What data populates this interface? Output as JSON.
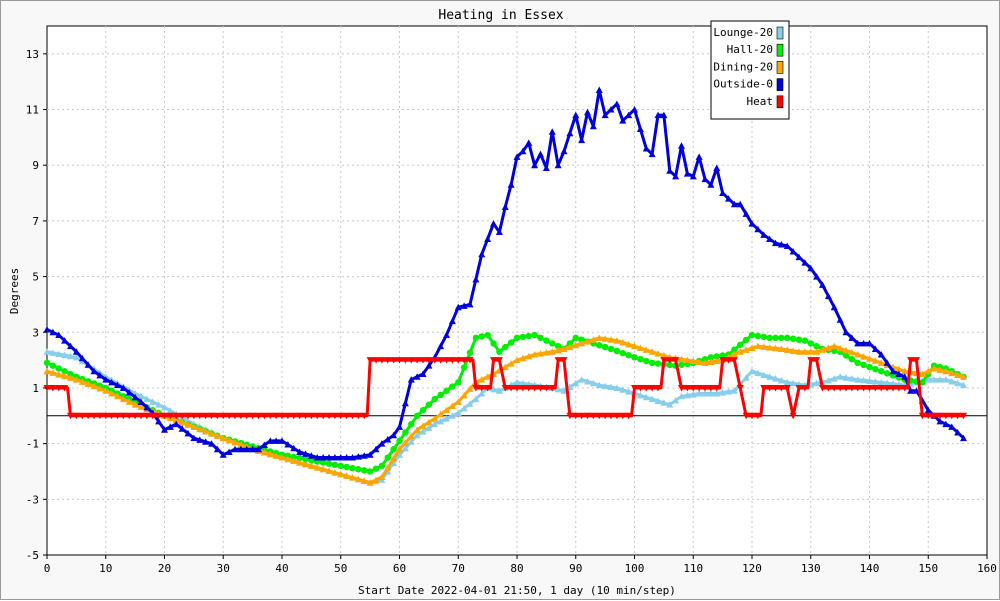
{
  "chart_data": {
    "type": "line",
    "title": "Heating in Essex",
    "xlabel": "Start Date 2022-04-01 21:50, 1 day (10 min/step)",
    "ylabel": "Degrees",
    "xlim": [
      0,
      160
    ],
    "ylim": [
      -5,
      14
    ],
    "x_ticks": [
      0,
      10,
      20,
      30,
      40,
      50,
      60,
      70,
      80,
      90,
      100,
      110,
      120,
      130,
      140,
      150,
      160
    ],
    "y_ticks": [
      -5,
      -3,
      -1,
      1,
      3,
      5,
      7,
      9,
      11,
      13
    ],
    "grid": true,
    "legend_position": "top-right",
    "series": [
      {
        "name": "Lounge-20",
        "color": "#87ceeb",
        "marker": "triangle",
        "points": [
          [
            0,
            2.3
          ],
          [
            5,
            2.1
          ],
          [
            10,
            1.4
          ],
          [
            15,
            0.8
          ],
          [
            20,
            0.3
          ],
          [
            25,
            -0.3
          ],
          [
            30,
            -0.8
          ],
          [
            35,
            -1.2
          ],
          [
            40,
            -1.5
          ],
          [
            45,
            -1.8
          ],
          [
            50,
            -2.1
          ],
          [
            55,
            -2.4
          ],
          [
            57,
            -2.3
          ],
          [
            60,
            -1.4
          ],
          [
            63,
            -0.7
          ],
          [
            66,
            -0.3
          ],
          [
            70,
            0.1
          ],
          [
            73,
            0.6
          ],
          [
            75,
            1.0
          ],
          [
            77,
            0.9
          ],
          [
            80,
            1.2
          ],
          [
            83,
            1.1
          ],
          [
            86,
            1.0
          ],
          [
            88,
            0.9
          ],
          [
            91,
            1.3
          ],
          [
            94,
            1.1
          ],
          [
            97,
            1.0
          ],
          [
            100,
            0.8
          ],
          [
            103,
            0.6
          ],
          [
            106,
            0.4
          ],
          [
            108,
            0.7
          ],
          [
            111,
            0.8
          ],
          [
            114,
            0.8
          ],
          [
            117,
            0.9
          ],
          [
            120,
            1.6
          ],
          [
            123,
            1.4
          ],
          [
            126,
            1.2
          ],
          [
            129,
            1.1
          ],
          [
            132,
            1.2
          ],
          [
            135,
            1.4
          ],
          [
            138,
            1.3
          ],
          [
            142,
            1.2
          ],
          [
            146,
            1.1
          ],
          [
            150,
            1.3
          ],
          [
            153,
            1.3
          ],
          [
            156,
            1.1
          ]
        ]
      },
      {
        "name": "Hall-20",
        "color": "#00ee00",
        "marker": "circle",
        "points": [
          [
            0,
            1.9
          ],
          [
            5,
            1.4
          ],
          [
            10,
            1.0
          ],
          [
            15,
            0.5
          ],
          [
            20,
            0.0
          ],
          [
            25,
            -0.4
          ],
          [
            30,
            -0.8
          ],
          [
            35,
            -1.1
          ],
          [
            40,
            -1.4
          ],
          [
            45,
            -1.6
          ],
          [
            50,
            -1.8
          ],
          [
            55,
            -2.0
          ],
          [
            57,
            -1.8
          ],
          [
            60,
            -0.9
          ],
          [
            63,
            0.0
          ],
          [
            66,
            0.6
          ],
          [
            70,
            1.2
          ],
          [
            73,
            2.8
          ],
          [
            75,
            2.9
          ],
          [
            77,
            2.3
          ],
          [
            80,
            2.8
          ],
          [
            83,
            2.9
          ],
          [
            86,
            2.6
          ],
          [
            88,
            2.4
          ],
          [
            90,
            2.8
          ],
          [
            93,
            2.6
          ],
          [
            96,
            2.4
          ],
          [
            100,
            2.1
          ],
          [
            103,
            1.9
          ],
          [
            107,
            1.8
          ],
          [
            110,
            1.9
          ],
          [
            113,
            2.1
          ],
          [
            116,
            2.2
          ],
          [
            120,
            2.9
          ],
          [
            123,
            2.8
          ],
          [
            126,
            2.8
          ],
          [
            129,
            2.7
          ],
          [
            132,
            2.4
          ],
          [
            135,
            2.3
          ],
          [
            138,
            1.9
          ],
          [
            142,
            1.6
          ],
          [
            146,
            1.3
          ],
          [
            149,
            1.2
          ],
          [
            151,
            1.8
          ],
          [
            153,
            1.7
          ],
          [
            156,
            1.4
          ]
        ]
      },
      {
        "name": "Dining-20",
        "color": "#ffa500",
        "marker": "triangle",
        "points": [
          [
            0,
            1.6
          ],
          [
            5,
            1.3
          ],
          [
            10,
            0.9
          ],
          [
            15,
            0.4
          ],
          [
            20,
            0.0
          ],
          [
            25,
            -0.4
          ],
          [
            30,
            -0.8
          ],
          [
            35,
            -1.2
          ],
          [
            40,
            -1.5
          ],
          [
            45,
            -1.8
          ],
          [
            50,
            -2.1
          ],
          [
            55,
            -2.4
          ],
          [
            57,
            -2.2
          ],
          [
            60,
            -1.2
          ],
          [
            63,
            -0.5
          ],
          [
            66,
            -0.1
          ],
          [
            70,
            0.5
          ],
          [
            73,
            1.2
          ],
          [
            76,
            1.5
          ],
          [
            80,
            2.0
          ],
          [
            83,
            2.2
          ],
          [
            86,
            2.3
          ],
          [
            88,
            2.4
          ],
          [
            91,
            2.6
          ],
          [
            94,
            2.8
          ],
          [
            97,
            2.7
          ],
          [
            100,
            2.5
          ],
          [
            103,
            2.3
          ],
          [
            106,
            2.1
          ],
          [
            109,
            2.0
          ],
          [
            112,
            1.9
          ],
          [
            115,
            2.0
          ],
          [
            118,
            2.3
          ],
          [
            121,
            2.5
          ],
          [
            125,
            2.4
          ],
          [
            128,
            2.3
          ],
          [
            131,
            2.3
          ],
          [
            134,
            2.5
          ],
          [
            138,
            2.2
          ],
          [
            142,
            1.9
          ],
          [
            146,
            1.6
          ],
          [
            149,
            1.5
          ],
          [
            151,
            1.7
          ],
          [
            153,
            1.6
          ],
          [
            156,
            1.4
          ]
        ]
      },
      {
        "name": "Outside-0",
        "color": "#0000dd",
        "marker": "triangle",
        "points": [
          [
            0,
            3.1
          ],
          [
            2,
            2.9
          ],
          [
            5,
            2.3
          ],
          [
            8,
            1.6
          ],
          [
            10,
            1.3
          ],
          [
            13,
            1.0
          ],
          [
            16,
            0.5
          ],
          [
            18,
            0.1
          ],
          [
            20,
            -0.5
          ],
          [
            22,
            -0.3
          ],
          [
            25,
            -0.8
          ],
          [
            28,
            -1.0
          ],
          [
            30,
            -1.4
          ],
          [
            32,
            -1.2
          ],
          [
            36,
            -1.2
          ],
          [
            38,
            -0.9
          ],
          [
            40,
            -0.9
          ],
          [
            43,
            -1.3
          ],
          [
            46,
            -1.5
          ],
          [
            50,
            -1.5
          ],
          [
            52,
            -1.5
          ],
          [
            55,
            -1.4
          ],
          [
            57,
            -1.0
          ],
          [
            59,
            -0.7
          ],
          [
            60,
            -0.4
          ],
          [
            62,
            1.3
          ],
          [
            64,
            1.5
          ],
          [
            66,
            2.1
          ],
          [
            68,
            2.9
          ],
          [
            70,
            3.9
          ],
          [
            72,
            4.0
          ],
          [
            74,
            5.8
          ],
          [
            76,
            6.9
          ],
          [
            77,
            6.6
          ],
          [
            78,
            7.5
          ],
          [
            79,
            8.3
          ],
          [
            80,
            9.3
          ],
          [
            81,
            9.5
          ],
          [
            82,
            9.8
          ],
          [
            83,
            9.0
          ],
          [
            84,
            9.4
          ],
          [
            85,
            8.9
          ],
          [
            86,
            10.2
          ],
          [
            87,
            9.0
          ],
          [
            88,
            9.5
          ],
          [
            90,
            10.8
          ],
          [
            91,
            9.9
          ],
          [
            92,
            10.9
          ],
          [
            93,
            10.4
          ],
          [
            94,
            11.7
          ],
          [
            95,
            10.8
          ],
          [
            97,
            11.2
          ],
          [
            98,
            10.6
          ],
          [
            100,
            11.0
          ],
          [
            102,
            9.6
          ],
          [
            103,
            9.4
          ],
          [
            104,
            10.8
          ],
          [
            105,
            10.8
          ],
          [
            106,
            8.8
          ],
          [
            107,
            8.6
          ],
          [
            108,
            9.7
          ],
          [
            109,
            8.7
          ],
          [
            110,
            8.6
          ],
          [
            111,
            9.3
          ],
          [
            112,
            8.5
          ],
          [
            113,
            8.3
          ],
          [
            114,
            8.9
          ],
          [
            115,
            8.0
          ],
          [
            117,
            7.6
          ],
          [
            118,
            7.6
          ],
          [
            120,
            6.9
          ],
          [
            122,
            6.5
          ],
          [
            124,
            6.2
          ],
          [
            126,
            6.1
          ],
          [
            128,
            5.7
          ],
          [
            130,
            5.3
          ],
          [
            132,
            4.7
          ],
          [
            134,
            3.9
          ],
          [
            136,
            3.0
          ],
          [
            138,
            2.6
          ],
          [
            140,
            2.6
          ],
          [
            142,
            2.2
          ],
          [
            144,
            1.6
          ],
          [
            146,
            1.4
          ],
          [
            147,
            0.9
          ],
          [
            148,
            0.9
          ],
          [
            150,
            0.2
          ],
          [
            152,
            -0.2
          ],
          [
            154,
            -0.4
          ],
          [
            156,
            -0.8
          ]
        ]
      },
      {
        "name": "Heat",
        "color": "#ff0000",
        "marker": "triangle-down",
        "points": [
          [
            0,
            1
          ],
          [
            3.5,
            1
          ],
          [
            4,
            0
          ],
          [
            54.5,
            0
          ],
          [
            55,
            2
          ],
          [
            72.5,
            2
          ],
          [
            73,
            1
          ],
          [
            75.5,
            1
          ],
          [
            76,
            2
          ],
          [
            77,
            2
          ],
          [
            78,
            1
          ],
          [
            86.5,
            1
          ],
          [
            87,
            2
          ],
          [
            88,
            2
          ],
          [
            89,
            0
          ],
          [
            99.5,
            0
          ],
          [
            100,
            1
          ],
          [
            104.5,
            1
          ],
          [
            105,
            2
          ],
          [
            107,
            2
          ],
          [
            108,
            1
          ],
          [
            114.5,
            1
          ],
          [
            115,
            2
          ],
          [
            117,
            2
          ],
          [
            119,
            0
          ],
          [
            121.5,
            0
          ],
          [
            122,
            1
          ],
          [
            126,
            1
          ],
          [
            127,
            0
          ],
          [
            128,
            1
          ],
          [
            129.5,
            1
          ],
          [
            130,
            2
          ],
          [
            131,
            2
          ],
          [
            132,
            1
          ],
          [
            146.5,
            1
          ],
          [
            147,
            2
          ],
          [
            148,
            2
          ],
          [
            149,
            0
          ],
          [
            156,
            0
          ]
        ]
      }
    ]
  }
}
